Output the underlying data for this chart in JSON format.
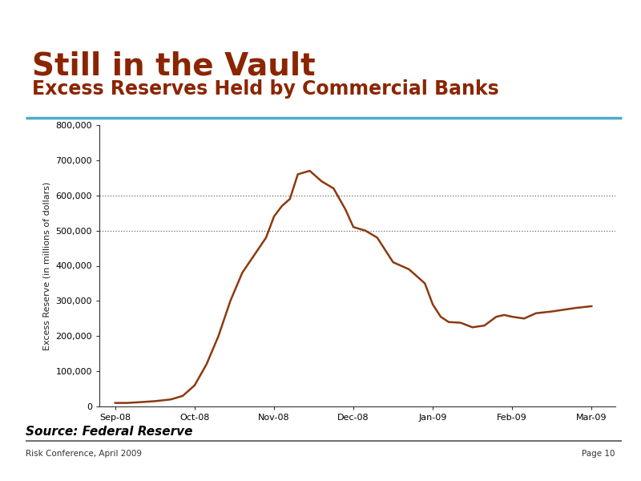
{
  "title_main": "Still in the Vault",
  "title_sub": "Excess Reserves Held by Commercial Banks",
  "title_main_color": "#8B2500",
  "title_sub_color": "#8B2500",
  "separator_color": "#4BACC6",
  "ylabel": "Excess Reserve (in millions of dollars)",
  "background_color": "#FFFFFF",
  "line_color": "#8B3A10",
  "line_width": 1.8,
  "x_labels": [
    "Sep-08",
    "Oct-08",
    "Nov-08",
    "Dec-08",
    "Jan-09",
    "Feb-09",
    "Mar-09"
  ],
  "y_data_x": [
    0.0,
    0.15,
    0.3,
    0.5,
    0.7,
    0.85,
    1.0,
    1.15,
    1.3,
    1.45,
    1.6,
    1.75,
    1.9,
    2.0,
    2.1,
    2.2,
    2.3,
    2.45,
    2.6,
    2.75,
    2.9,
    3.0,
    3.15,
    3.3,
    3.5,
    3.7,
    3.9,
    4.0,
    4.1,
    4.2,
    4.35,
    4.5,
    4.65,
    4.8,
    4.9,
    5.0,
    5.15,
    5.3,
    5.5,
    5.65,
    5.8,
    6.0
  ],
  "y_data_y": [
    10000,
    10000,
    12000,
    15000,
    20000,
    30000,
    60000,
    120000,
    200000,
    300000,
    380000,
    430000,
    480000,
    540000,
    570000,
    590000,
    660000,
    670000,
    640000,
    620000,
    560000,
    510000,
    500000,
    480000,
    410000,
    390000,
    350000,
    290000,
    255000,
    240000,
    238000,
    225000,
    230000,
    255000,
    260000,
    255000,
    250000,
    265000,
    270000,
    275000,
    280000,
    285000
  ],
  "ylim": [
    0,
    800000
  ],
  "yticks": [
    0,
    100000,
    200000,
    300000,
    400000,
    500000,
    600000,
    700000,
    800000
  ],
  "ytick_labels": [
    "0",
    "100,000",
    "200,000",
    "300,000",
    "400,000",
    "500,000",
    "600,000",
    "700,000",
    "800,000"
  ],
  "dotted_lines": [
    500000,
    600000
  ],
  "dotted_line_color": "#666666",
  "source_text": "Source: Federal Reserve",
  "footer_left": "Risk Conference, April 2009",
  "footer_right": "Page 10",
  "source_color": "#000000",
  "footer_color": "#333333",
  "title_main_fontsize": 28,
  "title_sub_fontsize": 17,
  "ylabel_fontsize": 8,
  "xtick_fontsize": 8,
  "ytick_fontsize": 8
}
